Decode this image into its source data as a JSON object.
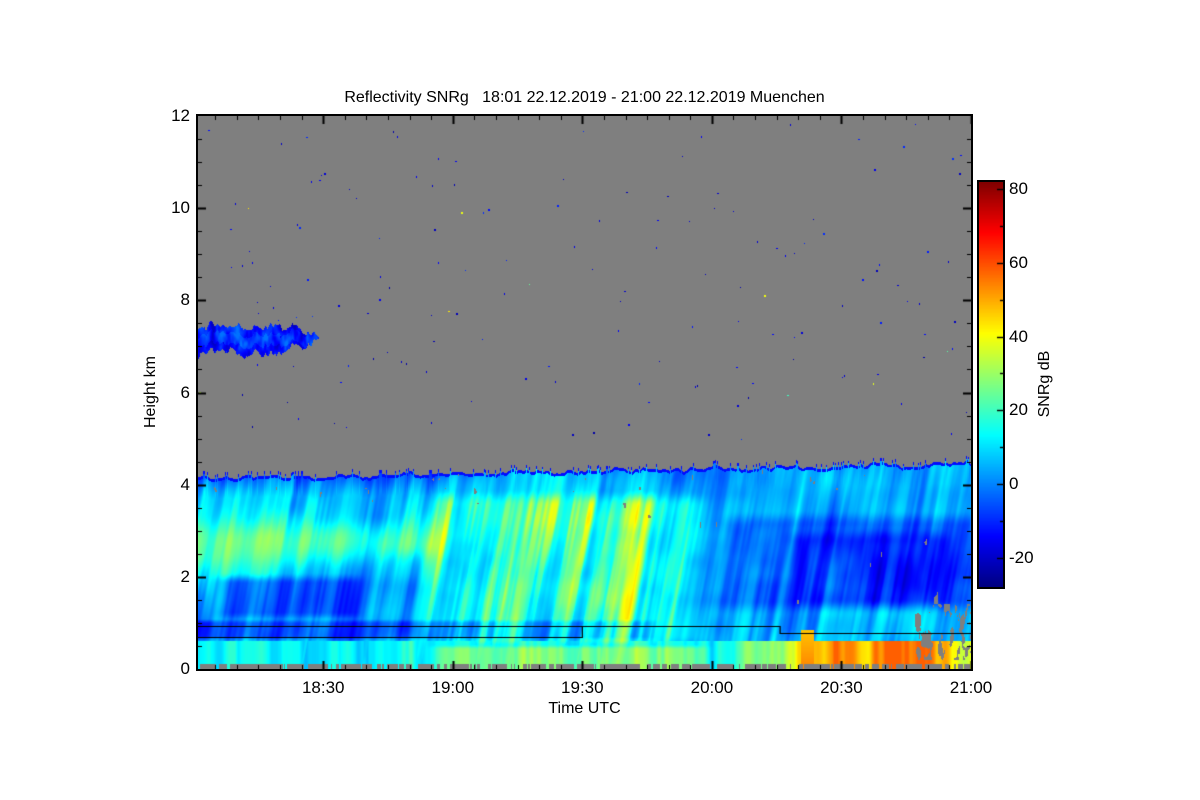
{
  "figure": {
    "background_color": "#ffffff",
    "axes_color": "#000000"
  },
  "chart_data": {
    "type": "heatmap",
    "title": "Reflectivity SNRg   18:01 22.12.2019 - 21:00 22.12.2019 Muenchen",
    "quantity": "Reflectivity SNRg",
    "time_start": "18:01 22.12.2019",
    "time_end": "21:00 22.12.2019",
    "station": "Muenchen",
    "xlabel": "Time UTC",
    "ylabel": "Height km",
    "ylim_km": [
      0,
      12
    ],
    "x_span_minutes": 179,
    "x_ticks": [
      {
        "label": "18:30",
        "minute": 29
      },
      {
        "label": "19:00",
        "minute": 59
      },
      {
        "label": "19:30",
        "minute": 89
      },
      {
        "label": "20:00",
        "minute": 119
      },
      {
        "label": "20:30",
        "minute": 149
      },
      {
        "label": "21:00",
        "minute": 179
      }
    ],
    "x_minor_tick_minutes": 5,
    "y_ticks": [
      {
        "label": "0",
        "km": 0
      },
      {
        "label": "2",
        "km": 2
      },
      {
        "label": "4",
        "km": 4
      },
      {
        "label": "6",
        "km": 6
      },
      {
        "label": "8",
        "km": 8
      },
      {
        "label": "10",
        "km": 10
      },
      {
        "label": "12",
        "km": 12
      }
    ],
    "y_minor_tick_km": 0.5,
    "grid": false,
    "no_data_color": "#7f7f7f",
    "colorbar": {
      "label": "SNRg dB",
      "colormap": "jet",
      "value_min": -28,
      "value_max": 82,
      "ticks": [
        {
          "label": "80",
          "value": 80
        },
        {
          "label": "60",
          "value": 60
        },
        {
          "label": "40",
          "value": 40
        },
        {
          "label": "20",
          "value": 20
        },
        {
          "label": "0",
          "value": 0
        },
        {
          "label": "-20",
          "value": -20
        }
      ],
      "minor_tick_step": 10,
      "position": "right"
    },
    "features": {
      "precipitation_layer": {
        "t_minutes": [
          0,
          179
        ],
        "cloud_top_km_start": 4.15,
        "cloud_top_km_end": 4.45,
        "description": "continuous precipitation echo below ragged cloud top with vertical fall streaks"
      },
      "detached_cloud": {
        "t_minutes": [
          0,
          28
        ],
        "height_km": [
          6.8,
          7.6
        ],
        "snr_db": [
          -22,
          -4
        ]
      },
      "cyan_band_left": {
        "t_minutes": [
          0,
          60
        ],
        "height_km": [
          2.3,
          3.2
        ],
        "snr_db": [
          15,
          32
        ]
      },
      "dark_patches_left": {
        "t_minutes": [
          4,
          38
        ],
        "height_km": [
          1.0,
          2.1
        ],
        "snr_db": [
          -20,
          -5
        ]
      },
      "dark_band_low": {
        "t_minutes": [
          0,
          110
        ],
        "height_km": [
          0.62,
          1.08
        ],
        "snr_db": [
          -18,
          0
        ]
      },
      "yellow_fall_streaks": {
        "t_minutes": [
          50,
          120
        ],
        "height_km": [
          0.4,
          3.9
        ],
        "snr_db": [
          30,
          42
        ]
      },
      "cool_region_right": {
        "t_minutes": [
          118,
          179
        ],
        "height_km": [
          1.2,
          3.4
        ],
        "snr_db": [
          -20,
          12
        ]
      },
      "surface_warm_band": {
        "t_minutes": [
          122,
          179
        ],
        "height_km": [
          0,
          0.6
        ],
        "snr_db": [
          35,
          55
        ]
      },
      "orange_column": {
        "t_minute": 141,
        "height_km": [
          0,
          0.85
        ],
        "snr_db": 54
      },
      "ground_clutter_strip": {
        "height_km": [
          0,
          0.1
        ],
        "style": "no-data gray dashes with colored gaps"
      },
      "speckle_dropouts_right": {
        "t_minutes": [
          128,
          179
        ],
        "height_km": [
          1.4,
          3.3
        ]
      },
      "noise_specks": {
        "count": 150,
        "snr_db": [
          -24,
          -8
        ],
        "warm_fraction": 0.06
      }
    },
    "annotation_lines": [
      {
        "name": "upper-step-line",
        "points_t_km": [
          [
            0,
            0.93
          ],
          [
            134.8,
            0.93
          ],
          [
            134.8,
            0.78
          ],
          [
            179,
            0.78
          ]
        ]
      },
      {
        "name": "lower-box-line",
        "points_t_km": [
          [
            0,
            0.69
          ],
          [
            89,
            0.69
          ],
          [
            89,
            0.93
          ]
        ]
      }
    ]
  }
}
